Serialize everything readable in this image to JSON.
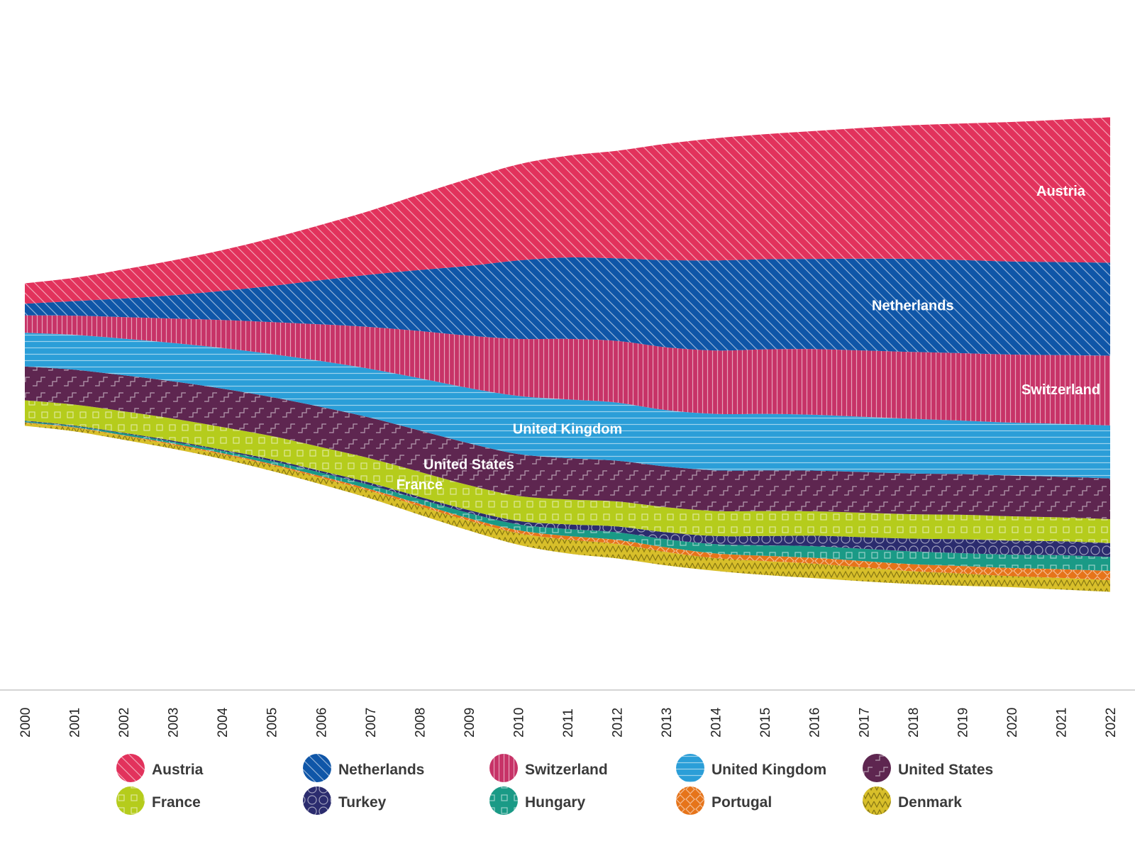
{
  "chart_data": {
    "type": "area",
    "layout": "streamgraph",
    "x": [
      2000,
      2001,
      2002,
      2003,
      2004,
      2005,
      2006,
      2007,
      2008,
      2009,
      2010,
      2011,
      2012,
      2013,
      2014,
      2015,
      2016,
      2017,
      2018,
      2019,
      2020,
      2021,
      2022
    ],
    "series": [
      {
        "name": "Denmark",
        "color": "#d8bf2a",
        "pattern": "zigzag",
        "values": [
          5,
          6,
          7,
          7,
          8,
          10,
          11,
          13,
          15,
          17,
          20,
          24,
          25,
          23,
          22,
          24,
          25,
          24,
          22,
          21,
          19,
          20,
          20
        ]
      },
      {
        "name": "Portugal",
        "color": "#e6741a",
        "pattern": "diamonds",
        "values": [
          1,
          1,
          1,
          2,
          2,
          2,
          3,
          3,
          4,
          4,
          5,
          6,
          7,
          8,
          8,
          9,
          10,
          11,
          12,
          13,
          14,
          15,
          16
        ]
      },
      {
        "name": "Hungary",
        "color": "#1a9a86",
        "pattern": "squares",
        "values": [
          2,
          2,
          3,
          3,
          4,
          5,
          6,
          7,
          8,
          9,
          10,
          12,
          13,
          14,
          16,
          18,
          20,
          21,
          22,
          22,
          23,
          24,
          24
        ]
      },
      {
        "name": "Turkey",
        "color": "#2b2c6e",
        "pattern": "circles",
        "values": [
          1,
          1,
          1,
          2,
          2,
          3,
          3,
          4,
          4,
          5,
          6,
          8,
          10,
          12,
          14,
          16,
          18,
          20,
          22,
          24,
          24,
          24,
          24
        ]
      },
      {
        "name": "France",
        "color": "#b5cc1c",
        "pattern": "squares",
        "values": [
          35,
          36,
          37,
          38,
          39,
          40,
          41,
          42,
          43,
          43,
          43,
          43,
          43,
          43,
          43,
          43,
          42,
          42,
          42,
          42,
          42,
          41,
          41
        ]
      },
      {
        "name": "United States",
        "color": "#5e2650",
        "pattern": "steps",
        "values": [
          58,
          60,
          62,
          64,
          66,
          67,
          69,
          70,
          71,
          72,
          72,
          71,
          70,
          70,
          70,
          70,
          70,
          70,
          70,
          70,
          70,
          70,
          70
        ]
      },
      {
        "name": "United Kingdom",
        "color": "#2b9ed8",
        "pattern": "hlines",
        "values": [
          58,
          60,
          63,
          66,
          70,
          74,
          79,
          84,
          90,
          95,
          100,
          101,
          100,
          97,
          97,
          97,
          96,
          95,
          94,
          92,
          91,
          91,
          91
        ]
      },
      {
        "name": "Switzerland",
        "color": "#c73367",
        "pattern": "vlines",
        "values": [
          30,
          33,
          37,
          42,
          48,
          55,
          63,
          72,
          81,
          90,
          98,
          104,
          106,
          108,
          109,
          111,
          113,
          114,
          115,
          116,
          117,
          118,
          120
        ]
      },
      {
        "name": "Netherlands",
        "color": "#0f56a8",
        "pattern": "diagonal",
        "values": [
          20,
          25,
          32,
          40,
          50,
          62,
          76,
          90,
          105,
          120,
          135,
          140,
          142,
          150,
          155,
          155,
          155,
          158,
          160,
          160,
          160,
          160,
          160
        ]
      },
      {
        "name": "Austria",
        "color": "#e2325c",
        "pattern": "diagonal",
        "values": [
          35,
          40,
          50,
          60,
          70,
          82,
          95,
          110,
          130,
          150,
          165,
          175,
          185,
          200,
          210,
          215,
          220,
          225,
          230,
          235,
          240,
          245,
          250
        ]
      }
    ],
    "stream_labels": [
      "Austria",
      "Netherlands",
      "Switzerland",
      "United Kingdom",
      "United States",
      "France"
    ],
    "legend": {
      "position": "bottom",
      "items": [
        "Austria",
        "Netherlands",
        "Switzerland",
        "United Kingdom",
        "United States",
        "France",
        "Turkey",
        "Hungary",
        "Portugal",
        "Denmark"
      ]
    },
    "title": "",
    "xlabel": "",
    "ylabel": "",
    "grid": false
  }
}
